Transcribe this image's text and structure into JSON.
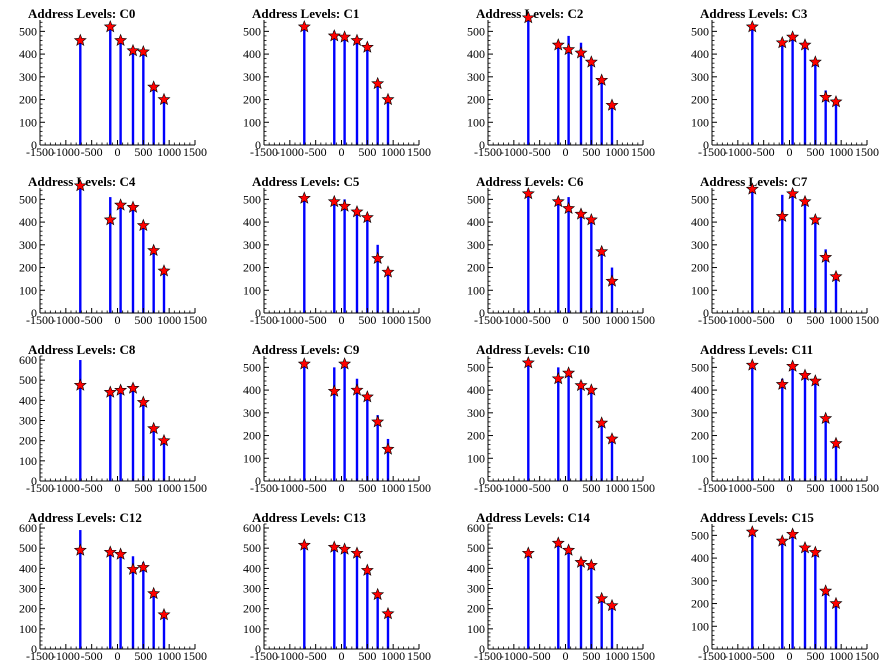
{
  "chart_data": [
    {
      "type": "bar",
      "title": "Address Levels: C0",
      "xlim": [
        -1500,
        1500
      ],
      "ylim": [
        0,
        550
      ],
      "yticks": [
        0,
        100,
        200,
        300,
        400,
        500
      ],
      "bars": [
        {
          "x": -720,
          "y": 460
        },
        {
          "x": -620,
          "y": 0
        },
        {
          "x": -140,
          "y": 520
        },
        {
          "x": 60,
          "y": 460
        },
        {
          "x": 300,
          "y": 415
        },
        {
          "x": 500,
          "y": 410
        },
        {
          "x": 700,
          "y": 255
        },
        {
          "x": 900,
          "y": 200
        }
      ],
      "stars": [
        {
          "x": -720,
          "y": 460
        },
        {
          "x": -140,
          "y": 520
        },
        {
          "x": 60,
          "y": 460
        },
        {
          "x": 300,
          "y": 415
        },
        {
          "x": 500,
          "y": 410
        },
        {
          "x": 700,
          "y": 255
        },
        {
          "x": 900,
          "y": 200
        }
      ]
    },
    {
      "type": "bar",
      "title": "Address Levels: C1",
      "xlim": [
        -1500,
        1500
      ],
      "ylim": [
        0,
        550
      ],
      "yticks": [
        0,
        100,
        200,
        300,
        400,
        500
      ],
      "bars": [
        {
          "x": -720,
          "y": 530
        },
        {
          "x": -140,
          "y": 500
        },
        {
          "x": 60,
          "y": 475
        },
        {
          "x": 300,
          "y": 460
        },
        {
          "x": 500,
          "y": 430
        },
        {
          "x": 700,
          "y": 270
        },
        {
          "x": 900,
          "y": 200
        }
      ],
      "stars": [
        {
          "x": -720,
          "y": 520
        },
        {
          "x": -140,
          "y": 480
        },
        {
          "x": 60,
          "y": 475
        },
        {
          "x": 300,
          "y": 460
        },
        {
          "x": 500,
          "y": 430
        },
        {
          "x": 700,
          "y": 270
        },
        {
          "x": 900,
          "y": 200
        }
      ]
    },
    {
      "type": "bar",
      "title": "Address Levels: C2",
      "xlim": [
        -1500,
        1500
      ],
      "ylim": [
        0,
        550
      ],
      "yticks": [
        0,
        100,
        200,
        300,
        400,
        500
      ],
      "bars": [
        {
          "x": -720,
          "y": 560
        },
        {
          "x": -140,
          "y": 450
        },
        {
          "x": 60,
          "y": 480
        },
        {
          "x": 300,
          "y": 450
        },
        {
          "x": 500,
          "y": 370
        },
        {
          "x": 700,
          "y": 285
        },
        {
          "x": 900,
          "y": 175
        }
      ],
      "stars": [
        {
          "x": -720,
          "y": 560
        },
        {
          "x": -140,
          "y": 440
        },
        {
          "x": 60,
          "y": 420
        },
        {
          "x": 300,
          "y": 405
        },
        {
          "x": 500,
          "y": 365
        },
        {
          "x": 700,
          "y": 285
        },
        {
          "x": 900,
          "y": 175
        }
      ]
    },
    {
      "type": "bar",
      "title": "Address Levels: C3",
      "xlim": [
        -1500,
        1500
      ],
      "ylim": [
        0,
        550
      ],
      "yticks": [
        0,
        100,
        200,
        300,
        400,
        500
      ],
      "bars": [
        {
          "x": -720,
          "y": 520
        },
        {
          "x": -140,
          "y": 460
        },
        {
          "x": 60,
          "y": 480
        },
        {
          "x": 300,
          "y": 445
        },
        {
          "x": 500,
          "y": 370
        },
        {
          "x": 700,
          "y": 240
        },
        {
          "x": 900,
          "y": 190
        }
      ],
      "stars": [
        {
          "x": -720,
          "y": 520
        },
        {
          "x": -140,
          "y": 450
        },
        {
          "x": 60,
          "y": 475
        },
        {
          "x": 300,
          "y": 440
        },
        {
          "x": 500,
          "y": 365
        },
        {
          "x": 700,
          "y": 210
        },
        {
          "x": 900,
          "y": 190
        }
      ]
    },
    {
      "type": "bar",
      "title": "Address Levels: C4",
      "xlim": [
        -1500,
        1500
      ],
      "ylim": [
        0,
        550
      ],
      "yticks": [
        0,
        100,
        200,
        300,
        400,
        500
      ],
      "bars": [
        {
          "x": -720,
          "y": 560
        },
        {
          "x": -140,
          "y": 510
        },
        {
          "x": 60,
          "y": 490
        },
        {
          "x": 300,
          "y": 460
        },
        {
          "x": 500,
          "y": 380
        },
        {
          "x": 700,
          "y": 275
        },
        {
          "x": 900,
          "y": 185
        }
      ],
      "stars": [
        {
          "x": -720,
          "y": 560
        },
        {
          "x": -140,
          "y": 410
        },
        {
          "x": 60,
          "y": 475
        },
        {
          "x": 300,
          "y": 465
        },
        {
          "x": 500,
          "y": 385
        },
        {
          "x": 700,
          "y": 275
        },
        {
          "x": 900,
          "y": 185
        }
      ]
    },
    {
      "type": "bar",
      "title": "Address Levels: C5",
      "xlim": [
        -1500,
        1500
      ],
      "ylim": [
        0,
        550
      ],
      "yticks": [
        0,
        100,
        200,
        300,
        400,
        500
      ],
      "bars": [
        {
          "x": -720,
          "y": 510
        },
        {
          "x": -140,
          "y": 490
        },
        {
          "x": 60,
          "y": 500
        },
        {
          "x": 300,
          "y": 460
        },
        {
          "x": 500,
          "y": 430
        },
        {
          "x": 700,
          "y": 300
        },
        {
          "x": 900,
          "y": 180
        }
      ],
      "stars": [
        {
          "x": -720,
          "y": 505
        },
        {
          "x": -140,
          "y": 490
        },
        {
          "x": 60,
          "y": 470
        },
        {
          "x": 300,
          "y": 445
        },
        {
          "x": 500,
          "y": 420
        },
        {
          "x": 700,
          "y": 240
        },
        {
          "x": 900,
          "y": 180
        }
      ]
    },
    {
      "type": "bar",
      "title": "Address Levels: C6",
      "xlim": [
        -1500,
        1500
      ],
      "ylim": [
        0,
        550
      ],
      "yticks": [
        0,
        100,
        200,
        300,
        400,
        500
      ],
      "bars": [
        {
          "x": -720,
          "y": 540
        },
        {
          "x": -140,
          "y": 500
        },
        {
          "x": 60,
          "y": 510
        },
        {
          "x": 300,
          "y": 440
        },
        {
          "x": 500,
          "y": 415
        },
        {
          "x": 700,
          "y": 270
        },
        {
          "x": 900,
          "y": 200
        }
      ],
      "stars": [
        {
          "x": -720,
          "y": 525
        },
        {
          "x": -140,
          "y": 490
        },
        {
          "x": 60,
          "y": 460
        },
        {
          "x": 300,
          "y": 435
        },
        {
          "x": 500,
          "y": 410
        },
        {
          "x": 700,
          "y": 270
        },
        {
          "x": 900,
          "y": 140
        }
      ]
    },
    {
      "type": "bar",
      "title": "Address Levels: C7",
      "xlim": [
        -1500,
        1500
      ],
      "ylim": [
        0,
        550
      ],
      "yticks": [
        0,
        100,
        200,
        300,
        400,
        500
      ],
      "bars": [
        {
          "x": -720,
          "y": 550
        },
        {
          "x": -140,
          "y": 520
        },
        {
          "x": 60,
          "y": 530
        },
        {
          "x": 300,
          "y": 500
        },
        {
          "x": 500,
          "y": 420
        },
        {
          "x": 700,
          "y": 280
        },
        {
          "x": 900,
          "y": 170
        }
      ],
      "stars": [
        {
          "x": -720,
          "y": 545
        },
        {
          "x": -140,
          "y": 425
        },
        {
          "x": 60,
          "y": 525
        },
        {
          "x": 300,
          "y": 490
        },
        {
          "x": 500,
          "y": 410
        },
        {
          "x": 700,
          "y": 245
        },
        {
          "x": 900,
          "y": 160
        }
      ]
    },
    {
      "type": "bar",
      "title": "Address Levels: C8",
      "xlim": [
        -1500,
        1500
      ],
      "ylim": [
        0,
        620
      ],
      "yticks": [
        0,
        100,
        200,
        300,
        400,
        500,
        600
      ],
      "bars": [
        {
          "x": -720,
          "y": 600
        },
        {
          "x": -140,
          "y": 460
        },
        {
          "x": 60,
          "y": 470
        },
        {
          "x": 300,
          "y": 480
        },
        {
          "x": 500,
          "y": 400
        },
        {
          "x": 700,
          "y": 260
        },
        {
          "x": 900,
          "y": 200
        }
      ],
      "stars": [
        {
          "x": -720,
          "y": 475
        },
        {
          "x": -140,
          "y": 440
        },
        {
          "x": 60,
          "y": 450
        },
        {
          "x": 300,
          "y": 460
        },
        {
          "x": 500,
          "y": 390
        },
        {
          "x": 700,
          "y": 260
        },
        {
          "x": 900,
          "y": 200
        }
      ]
    },
    {
      "type": "bar",
      "title": "Address Levels: C9",
      "xlim": [
        -1500,
        1500
      ],
      "ylim": [
        0,
        550
      ],
      "yticks": [
        0,
        100,
        200,
        300,
        400,
        500
      ],
      "bars": [
        {
          "x": -720,
          "y": 520
        },
        {
          "x": -140,
          "y": 500
        },
        {
          "x": 60,
          "y": 520
        },
        {
          "x": 300,
          "y": 450
        },
        {
          "x": 500,
          "y": 380
        },
        {
          "x": 700,
          "y": 290
        },
        {
          "x": 900,
          "y": 185
        }
      ],
      "stars": [
        {
          "x": -720,
          "y": 515
        },
        {
          "x": -140,
          "y": 395
        },
        {
          "x": 60,
          "y": 515
        },
        {
          "x": 300,
          "y": 400
        },
        {
          "x": 500,
          "y": 370
        },
        {
          "x": 700,
          "y": 260
        },
        {
          "x": 900,
          "y": 140
        }
      ]
    },
    {
      "type": "bar",
      "title": "Address Levels: C10",
      "xlim": [
        -1500,
        1500
      ],
      "ylim": [
        0,
        550
      ],
      "yticks": [
        0,
        100,
        200,
        300,
        400,
        500
      ],
      "bars": [
        {
          "x": -720,
          "y": 520
        },
        {
          "x": -140,
          "y": 500
        },
        {
          "x": 60,
          "y": 480
        },
        {
          "x": 300,
          "y": 440
        },
        {
          "x": 500,
          "y": 410
        },
        {
          "x": 700,
          "y": 260
        },
        {
          "x": 900,
          "y": 190
        }
      ],
      "stars": [
        {
          "x": -720,
          "y": 520
        },
        {
          "x": -140,
          "y": 450
        },
        {
          "x": 60,
          "y": 475
        },
        {
          "x": 300,
          "y": 420
        },
        {
          "x": 500,
          "y": 400
        },
        {
          "x": 700,
          "y": 255
        },
        {
          "x": 900,
          "y": 185
        }
      ]
    },
    {
      "type": "bar",
      "title": "Address Levels: C11",
      "xlim": [
        -1500,
        1500
      ],
      "ylim": [
        0,
        550
      ],
      "yticks": [
        0,
        100,
        200,
        300,
        400,
        500
      ],
      "bars": [
        {
          "x": -720,
          "y": 520
        },
        {
          "x": -140,
          "y": 450
        },
        {
          "x": 60,
          "y": 500
        },
        {
          "x": 300,
          "y": 480
        },
        {
          "x": 500,
          "y": 440
        },
        {
          "x": 700,
          "y": 280
        },
        {
          "x": 900,
          "y": 170
        }
      ],
      "stars": [
        {
          "x": -720,
          "y": 510
        },
        {
          "x": -140,
          "y": 425
        },
        {
          "x": 60,
          "y": 505
        },
        {
          "x": 300,
          "y": 465
        },
        {
          "x": 500,
          "y": 440
        },
        {
          "x": 700,
          "y": 275
        },
        {
          "x": 900,
          "y": 165
        }
      ]
    },
    {
      "type": "bar",
      "title": "Address Levels: C12",
      "xlim": [
        -1500,
        1500
      ],
      "ylim": [
        0,
        620
      ],
      "yticks": [
        0,
        100,
        200,
        300,
        400,
        500,
        600
      ],
      "bars": [
        {
          "x": -720,
          "y": 590
        },
        {
          "x": -140,
          "y": 500
        },
        {
          "x": 60,
          "y": 480
        },
        {
          "x": 300,
          "y": 460
        },
        {
          "x": 500,
          "y": 430
        },
        {
          "x": 700,
          "y": 280
        },
        {
          "x": 900,
          "y": 190
        }
      ],
      "stars": [
        {
          "x": -720,
          "y": 490
        },
        {
          "x": -140,
          "y": 480
        },
        {
          "x": 60,
          "y": 470
        },
        {
          "x": 300,
          "y": 395
        },
        {
          "x": 500,
          "y": 405
        },
        {
          "x": 700,
          "y": 275
        },
        {
          "x": 900,
          "y": 170
        }
      ]
    },
    {
      "type": "bar",
      "title": "Address Levels: C13",
      "xlim": [
        -1500,
        1500
      ],
      "ylim": [
        0,
        620
      ],
      "yticks": [
        0,
        100,
        200,
        300,
        400,
        500,
        600
      ],
      "bars": [
        {
          "x": -720,
          "y": 530
        },
        {
          "x": -140,
          "y": 510
        },
        {
          "x": 60,
          "y": 510
        },
        {
          "x": 300,
          "y": 470
        },
        {
          "x": 500,
          "y": 400
        },
        {
          "x": 700,
          "y": 280
        },
        {
          "x": 900,
          "y": 180
        }
      ],
      "stars": [
        {
          "x": -720,
          "y": 515
        },
        {
          "x": -140,
          "y": 505
        },
        {
          "x": 60,
          "y": 495
        },
        {
          "x": 300,
          "y": 475
        },
        {
          "x": 500,
          "y": 390
        },
        {
          "x": 700,
          "y": 270
        },
        {
          "x": 900,
          "y": 175
        }
      ]
    },
    {
      "type": "bar",
      "title": "Address Levels: C14",
      "xlim": [
        -1500,
        1500
      ],
      "ylim": [
        0,
        620
      ],
      "yticks": [
        0,
        100,
        200,
        300,
        400,
        500,
        600
      ],
      "bars": [
        {
          "x": -720,
          "y": 480
        },
        {
          "x": -140,
          "y": 530
        },
        {
          "x": 60,
          "y": 500
        },
        {
          "x": 300,
          "y": 440
        },
        {
          "x": 500,
          "y": 420
        },
        {
          "x": 700,
          "y": 260
        },
        {
          "x": 900,
          "y": 220
        }
      ],
      "stars": [
        {
          "x": -720,
          "y": 475
        },
        {
          "x": -140,
          "y": 525
        },
        {
          "x": 60,
          "y": 490
        },
        {
          "x": 300,
          "y": 430
        },
        {
          "x": 500,
          "y": 415
        },
        {
          "x": 700,
          "y": 250
        },
        {
          "x": 900,
          "y": 215
        }
      ]
    },
    {
      "type": "bar",
      "title": "Address Levels: C15",
      "xlim": [
        -1500,
        1500
      ],
      "ylim": [
        0,
        550
      ],
      "yticks": [
        0,
        100,
        200,
        300,
        400,
        500
      ],
      "bars": [
        {
          "x": -720,
          "y": 520
        },
        {
          "x": -140,
          "y": 480
        },
        {
          "x": 60,
          "y": 510
        },
        {
          "x": 300,
          "y": 450
        },
        {
          "x": 500,
          "y": 430
        },
        {
          "x": 700,
          "y": 260
        },
        {
          "x": 900,
          "y": 200
        }
      ],
      "stars": [
        {
          "x": -720,
          "y": 515
        },
        {
          "x": -140,
          "y": 475
        },
        {
          "x": 60,
          "y": 505
        },
        {
          "x": 300,
          "y": 445
        },
        {
          "x": 500,
          "y": 425
        },
        {
          "x": 700,
          "y": 255
        },
        {
          "x": 900,
          "y": 200
        }
      ]
    }
  ],
  "xticks": [
    -1500,
    -1000,
    -500,
    0,
    500,
    1000,
    1500
  ],
  "colors": {
    "bar": "#0000ff",
    "star": "#ff0000",
    "star_outline": "#000000",
    "axis": "#000000"
  }
}
